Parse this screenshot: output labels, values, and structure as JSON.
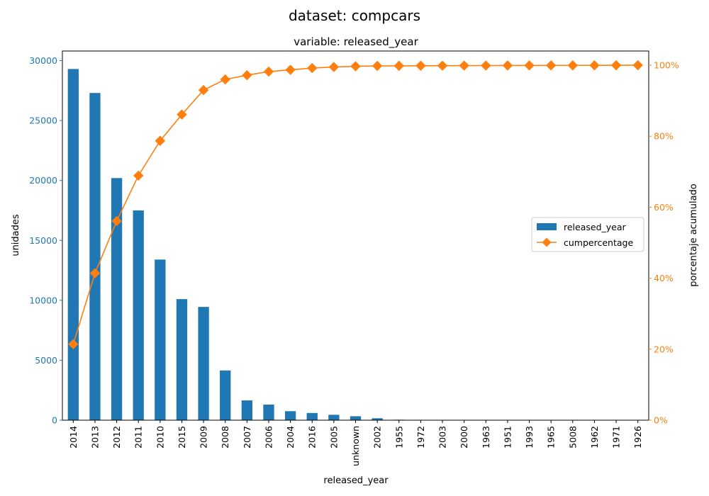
{
  "suptitle": "dataset: compcars",
  "chart_data": {
    "type": "bar",
    "title": "variable: released_year",
    "xlabel": "released_year",
    "ylabel_left": "unidades",
    "ylabel_right": "porcentaje acumulado",
    "categories": [
      "2014",
      "2013",
      "2012",
      "2011",
      "2010",
      "2015",
      "2009",
      "2008",
      "2007",
      "2006",
      "2004",
      "2016",
      "2005",
      "unknown",
      "2002",
      "1955",
      "1972",
      "2003",
      "2000",
      "1963",
      "1951",
      "1993",
      "1965",
      "5008",
      "1962",
      "1971",
      "1926"
    ],
    "series": [
      {
        "name": "released_year",
        "type": "bar",
        "axis": "left",
        "color": "#1f77b4",
        "values": [
          29300,
          27300,
          20200,
          17500,
          13400,
          10100,
          9450,
          4150,
          1650,
          1300,
          750,
          600,
          450,
          330,
          160,
          40,
          30,
          25,
          20,
          15,
          12,
          10,
          8,
          6,
          5,
          4,
          3
        ]
      },
      {
        "name": "cumpercentage",
        "type": "line",
        "axis": "right",
        "color": "#ff7f0e",
        "marker": "diamond",
        "values": [
          21.4,
          41.4,
          56.1,
          68.9,
          78.7,
          86.1,
          93.0,
          96.0,
          97.2,
          98.2,
          98.7,
          99.2,
          99.5,
          99.7,
          99.8,
          99.83,
          99.85,
          99.87,
          99.89,
          99.91,
          99.93,
          99.94,
          99.95,
          99.96,
          99.97,
          99.98,
          100
        ]
      }
    ],
    "ylim_left": [
      0,
      30800
    ],
    "yticks_left": [
      0,
      5000,
      10000,
      15000,
      20000,
      25000,
      30000
    ],
    "ylim_right": [
      0,
      104
    ],
    "yticks_right": [
      0,
      20,
      40,
      60,
      80,
      100
    ],
    "ytick_right_suffix": "%",
    "left_axis_color": "#1f77b4",
    "right_axis_color": "#ff7f0e",
    "legend": {
      "position": "center-right",
      "entries": [
        "released_year",
        "cumpercentage"
      ]
    },
    "grid": false
  }
}
